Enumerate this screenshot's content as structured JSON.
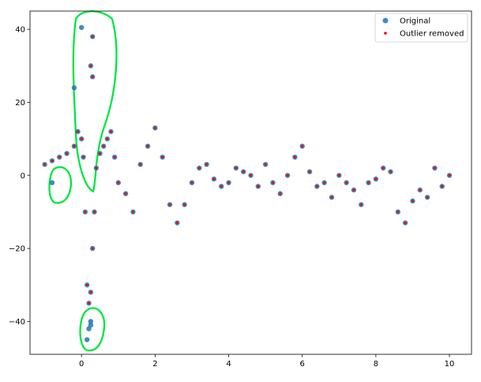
{
  "chart_data": {
    "type": "scatter",
    "xlim": [
      -1.4,
      10.6
    ],
    "ylim": [
      -49,
      45
    ],
    "x_ticks": [
      0,
      2,
      4,
      6,
      8,
      10
    ],
    "x_tick_labels": [
      "0",
      "2",
      "4",
      "6",
      "8",
      "10"
    ],
    "y_ticks": [
      -40,
      -20,
      0,
      20,
      40
    ],
    "y_tick_labels": [
      "−40",
      "−20",
      "0",
      "20",
      "40"
    ],
    "grid": false,
    "legend_position": "top-right",
    "series": [
      {
        "name": "Original",
        "marker": "circle",
        "color": "#1f77b4",
        "x": [
          -1.0,
          -0.8,
          -0.6,
          -0.4,
          -0.2,
          -0.1,
          0.0,
          0.05,
          0.1,
          0.15,
          0.2,
          0.25,
          0.3,
          0.35,
          0.4,
          0.5,
          0.6,
          0.7,
          0.8,
          0.9,
          1.0,
          1.2,
          1.4,
          1.6,
          1.8,
          2.0,
          2.2,
          2.4,
          2.6,
          2.8,
          3.0,
          3.2,
          3.4,
          3.6,
          3.8,
          4.0,
          4.2,
          4.4,
          4.6,
          4.8,
          5.0,
          5.2,
          5.4,
          5.6,
          5.8,
          6.0,
          6.2,
          6.4,
          6.6,
          6.8,
          7.0,
          7.2,
          7.4,
          7.6,
          7.8,
          8.0,
          8.2,
          8.4,
          8.6,
          8.8,
          9.0,
          9.2,
          9.4,
          9.6,
          9.8,
          10.0,
          0.0,
          0.3,
          0.25,
          0.3,
          -0.2,
          -0.8,
          0.25,
          0.25,
          0.2,
          0.15
        ],
        "y": [
          3,
          4,
          5,
          6,
          8,
          12,
          10,
          5,
          -10,
          -30,
          -35,
          -32,
          -20,
          -10,
          2,
          6,
          8,
          10,
          12,
          5,
          -2,
          -5,
          -10,
          3,
          8,
          13,
          5,
          -8,
          -13,
          -8,
          -2,
          2,
          3,
          -1,
          -3,
          -2,
          2,
          1,
          0,
          -3,
          3,
          -2,
          -5,
          0,
          5,
          8,
          1,
          -3,
          -2,
          -6,
          0,
          -2,
          -4,
          -8,
          -2,
          -1,
          2,
          1,
          -10,
          -13,
          -7,
          -4,
          -6,
          2,
          -3,
          0,
          40.5,
          38,
          30,
          27,
          24,
          -2,
          -40,
          -41,
          -42,
          -45
        ]
      },
      {
        "name": "Outlier removed",
        "marker": "point",
        "color": "#ff0000",
        "x": [
          -1.0,
          -0.8,
          -0.6,
          -0.4,
          -0.2,
          -0.1,
          0.0,
          0.05,
          0.1,
          0.15,
          0.2,
          0.25,
          0.3,
          0.35,
          0.4,
          0.5,
          0.6,
          0.7,
          0.8,
          0.9,
          1.0,
          1.2,
          1.4,
          1.6,
          1.8,
          2.0,
          2.2,
          2.4,
          2.6,
          2.8,
          3.0,
          3.2,
          3.4,
          3.6,
          3.8,
          4.0,
          4.2,
          4.4,
          4.6,
          4.8,
          5.0,
          5.2,
          5.4,
          5.6,
          5.8,
          6.0,
          6.2,
          6.4,
          6.6,
          6.8,
          7.0,
          7.2,
          7.4,
          7.6,
          7.8,
          8.0,
          8.2,
          8.4,
          8.6,
          8.8,
          9.0,
          9.2,
          9.4,
          9.6,
          9.8,
          10.0,
          0.3,
          0.25,
          0.3
        ],
        "y": [
          3,
          4,
          5,
          6,
          8,
          12,
          10,
          5,
          -10,
          -30,
          -35,
          -32,
          -20,
          -10,
          2,
          6,
          8,
          10,
          12,
          5,
          -2,
          -5,
          -10,
          3,
          8,
          13,
          5,
          -8,
          -13,
          -8,
          -2,
          2,
          3,
          -1,
          -3,
          -2,
          2,
          1,
          0,
          -3,
          3,
          -2,
          -5,
          0,
          5,
          8,
          1,
          -3,
          -2,
          -6,
          0,
          -2,
          -4,
          -8,
          -2,
          -1,
          2,
          1,
          -10,
          -13,
          -7,
          -4,
          -6,
          2,
          -3,
          0,
          38,
          30,
          27
        ]
      }
    ]
  }
}
